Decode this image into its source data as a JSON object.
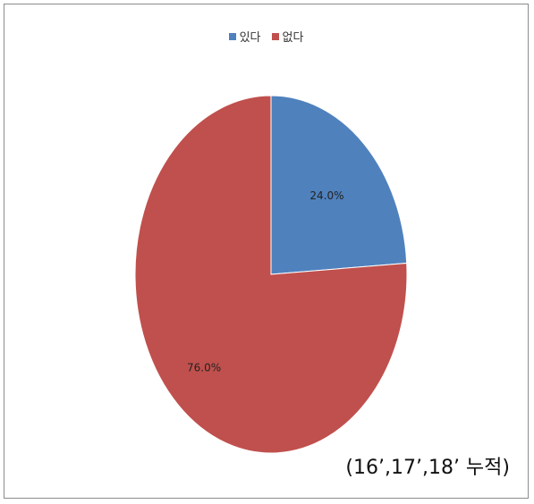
{
  "chart_data": {
    "type": "pie",
    "categories": [
      "있다",
      "없다"
    ],
    "values": [
      24.0,
      76.0
    ],
    "data_labels": [
      "24.0%",
      "76.0%"
    ],
    "colors": [
      "#4F81BD",
      "#C0504D"
    ],
    "legend_position": "top",
    "title": "",
    "note": "(16’,17’,18’ 누적)"
  }
}
